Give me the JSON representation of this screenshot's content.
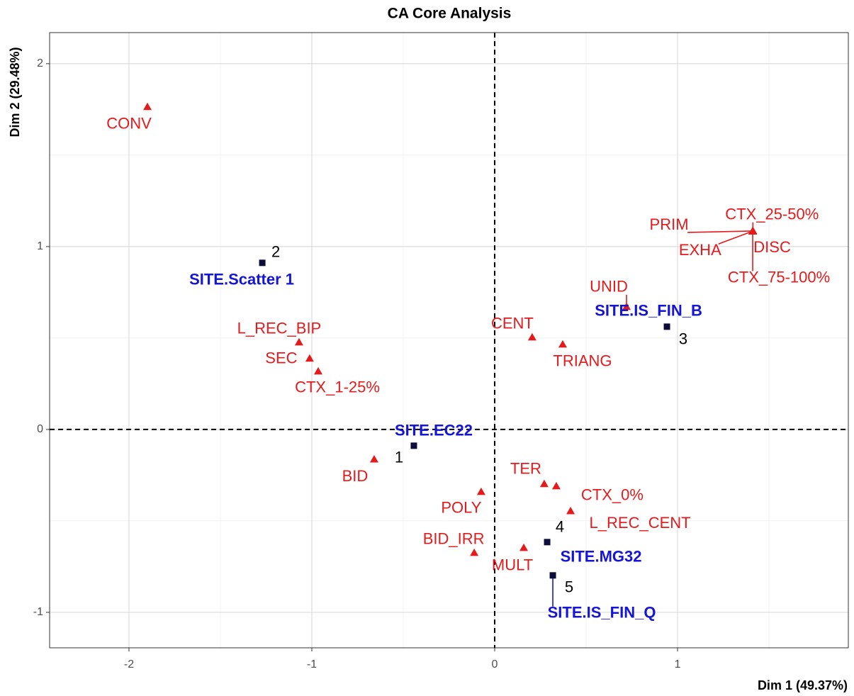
{
  "chart_data": {
    "type": "scatter",
    "title": "CA Core Analysis",
    "xlabel": "Dim 1 (49.37%)",
    "ylabel": "Dim 2 (29.48%)",
    "xlim": [
      -2.434,
      1.934
    ],
    "ylim": [
      -1.194,
      2.17
    ],
    "xticks": [
      -2,
      -1,
      0,
      1
    ],
    "yticks": [
      -1,
      0,
      1,
      2
    ],
    "grid": true,
    "ref_lines": {
      "x": 0,
      "y": 0
    },
    "series": [
      {
        "marker": "triangle",
        "color": "#e41a1c",
        "label_color": "#e41a1c",
        "labels": [
          "CONV",
          "PRIM",
          "CTX_25-50%",
          "EXHA",
          "DISC",
          "CTX_75-100%",
          "UNID",
          "CENT",
          "TRIANG",
          "L_REC_BIP",
          "SEC",
          "CTX_1-25%",
          "BID",
          "POLY",
          "TER",
          "CTX_0%",
          "L_REC_CENT",
          "BID_IRR",
          "MULT"
        ],
        "x": [
          -1.899,
          1.411,
          1.412,
          1.41,
          1.413,
          1.411,
          0.721,
          0.205,
          0.372,
          -1.07,
          -1.012,
          -0.965,
          -0.659,
          -0.074,
          0.271,
          0.337,
          0.415,
          -0.112,
          0.159
        ],
        "y": [
          1.764,
          1.085,
          1.086,
          1.084,
          1.085,
          1.083,
          0.671,
          0.504,
          0.465,
          0.477,
          0.388,
          0.318,
          -0.163,
          -0.341,
          -0.298,
          -0.31,
          -0.446,
          -0.674,
          -0.647
        ]
      },
      {
        "marker": "square",
        "color": "#0d0d3a",
        "label_color": "#1515d6",
        "ids": [
          1,
          2,
          3,
          4,
          5
        ],
        "labels": [
          "SITE.EC22",
          "SITE.Scatter 1",
          "SITE.IS_FIN_B",
          "SITE.MG32",
          "SITE.IS_FIN_Q"
        ],
        "x": [
          -0.442,
          -1.271,
          0.942,
          0.287,
          0.318
        ],
        "y": [
          -0.089,
          0.911,
          0.562,
          -0.616,
          -0.798
        ]
      }
    ]
  }
}
